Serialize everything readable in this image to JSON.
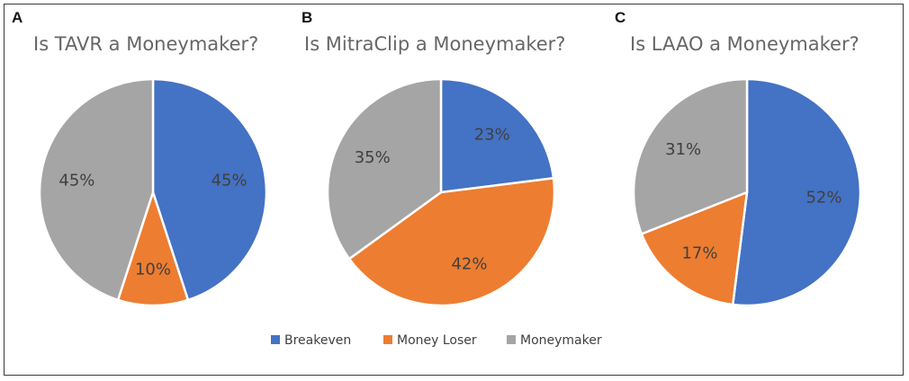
{
  "legend": [
    {
      "label": "Breakeven",
      "color": "#4472c4"
    },
    {
      "label": "Money Loser",
      "color": "#ed7d31"
    },
    {
      "label": "Moneymaker",
      "color": "#a5a5a5"
    }
  ],
  "chart_data": [
    {
      "type": "pie",
      "panel": "A",
      "title": "Is TAVR a Moneymaker?",
      "categories": [
        "Breakeven",
        "Money Loser",
        "Moneymaker"
      ],
      "values": [
        45,
        10,
        45
      ],
      "labels": [
        "45%",
        "10%",
        "45%"
      ]
    },
    {
      "type": "pie",
      "panel": "B",
      "title": "Is MitraClip a Moneymaker?",
      "categories": [
        "Breakeven",
        "Money Loser",
        "Moneymaker"
      ],
      "values": [
        23,
        42,
        35
      ],
      "labels": [
        "23%",
        "42%",
        "35%"
      ]
    },
    {
      "type": "pie",
      "panel": "C",
      "title": "Is LAAO a Moneymaker?",
      "categories": [
        "Breakeven",
        "Money Loser",
        "Moneymaker"
      ],
      "values": [
        52,
        17,
        31
      ],
      "labels": [
        "52%",
        "17%",
        "31%"
      ]
    }
  ]
}
